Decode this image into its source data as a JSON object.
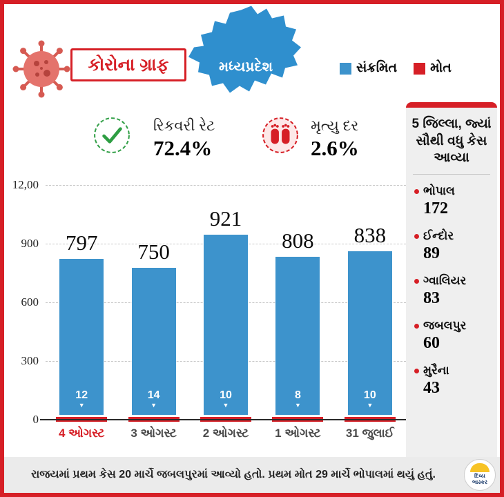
{
  "header": {
    "title": "કોરોના ગ્રાફ",
    "map_label": "મધ્યપ્રદેશ",
    "legend": [
      {
        "label": "સંક્રમિત",
        "color": "#3d93cc"
      },
      {
        "label": "મોત",
        "color": "#d61f26"
      }
    ]
  },
  "stats": {
    "recovery": {
      "label": "રિકવરી રેટ",
      "value": "72.4%"
    },
    "death": {
      "label": "મૃત્યુ દર",
      "value": "2.6%"
    }
  },
  "chart_data": {
    "type": "bar",
    "categories": [
      "4 ઓગસ્ટ",
      "3 ઓગસ્ટ",
      "2 ઓગસ્ટ",
      "1 ઓગસ્ટ",
      "31 જુલાઈ"
    ],
    "series": [
      {
        "name": "સંક્રમિત",
        "values": [
          797,
          750,
          921,
          808,
          838
        ],
        "color": "#3d93cc"
      },
      {
        "name": "મોત",
        "values": [
          12,
          14,
          10,
          8,
          10
        ],
        "color": "#d61f26"
      }
    ],
    "title": "કોરોના ગ્રાફ - મધ્યપ્રદેશ",
    "xlabel": "",
    "ylabel": "",
    "ylim": [
      0,
      1200
    ],
    "yticks": [
      "12,00",
      "900",
      "600",
      "300",
      "0"
    ],
    "grid": true,
    "legend_position": "top-right",
    "highlight_category_color": "#d61f26"
  },
  "sidebar": {
    "title": "5 જિલ્લા, જ્યાં સૌથી વધુ કેસ આવ્યા",
    "items": [
      {
        "name": "ભોપાલ",
        "value": "172"
      },
      {
        "name": "ઈન્દોર",
        "value": "89"
      },
      {
        "name": "ગ્વાલિયર",
        "value": "83"
      },
      {
        "name": "જબલપુર",
        "value": "60"
      },
      {
        "name": "મુરૈના",
        "value": "43"
      }
    ]
  },
  "footer": {
    "text": "રાજયમાં પ્રથમ કેસ 20 માર્ચે જબલપુરમાં આવ્યો હતો. પ્રથમ મોત 29 માર્ચે ભોપાલમાં થયું હતું.",
    "logo_line1": "દિવ્ય",
    "logo_line2": "ભાસ્કર"
  },
  "colors": {
    "frame": "#d61f26",
    "bar_blue": "#3d93cc",
    "death_red": "#d61f26",
    "panel_gray": "#efefef",
    "footer_gray": "#ebebeb"
  }
}
